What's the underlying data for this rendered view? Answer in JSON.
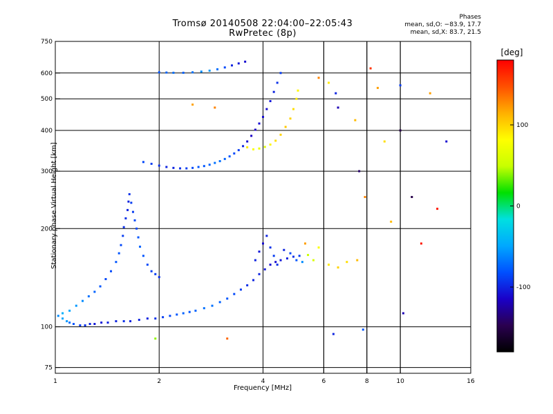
{
  "header": {
    "title": "Tromsø 20140508 22:04:00–22:05:43",
    "subtitle": "RwPretec (8p)",
    "stats_title": "Phases",
    "stats_o": "mean, sd,O: −83.9, 17.7",
    "stats_x": "mean, sd,X:  83.7, 21.5"
  },
  "colorbar": {
    "title": "[deg]",
    "ticks": [
      {
        "value": 100,
        "label": "100"
      },
      {
        "value": 0,
        "label": "0"
      },
      {
        "value": -100,
        "label": "-100"
      }
    ],
    "range": [
      -180,
      180
    ],
    "colors": [
      "#000000",
      "#2a0050",
      "#1a00c8",
      "#0050ff",
      "#00a8ff",
      "#00e0e0",
      "#00e000",
      "#c8ff00",
      "#ffff00",
      "#ffb000",
      "#ff5000",
      "#ff0000"
    ]
  },
  "chart_data": {
    "type": "scatter",
    "title": "Tromsø 20140508 22:04:00–22:05:43",
    "subtitle": "RwPretec (8p)",
    "xlabel": "Frequency [MHz]",
    "ylabel": "Stationary phase Virtual Height [km]",
    "xscale": "log",
    "yscale": "log",
    "xlim": [
      1,
      16
    ],
    "ylim": [
      72,
      750
    ],
    "grid": true,
    "xticks": [
      {
        "value": 1,
        "label": "1"
      },
      {
        "value": 2,
        "label": "2"
      },
      {
        "value": 4,
        "label": "4"
      },
      {
        "value": 6,
        "label": "6"
      },
      {
        "value": 8,
        "label": "8"
      },
      {
        "value": 10,
        "label": "10"
      },
      {
        "value": 16,
        "label": "16"
      }
    ],
    "xgrid_extra": [
      6,
      8,
      10
    ],
    "yticks": [
      {
        "value": 75,
        "label": "75"
      },
      {
        "value": 100,
        "label": "100"
      },
      {
        "value": 200,
        "label": "200"
      },
      {
        "value": 300,
        "label": "300"
      },
      {
        "value": 400,
        "label": "400"
      },
      {
        "value": 500,
        "label": "500"
      },
      {
        "value": 600,
        "label": "600"
      },
      {
        "value": 750,
        "label": "750"
      }
    ],
    "color_scale": "phase [deg]",
    "series": [
      {
        "points": [
          [
            1.02,
            108,
            -60
          ],
          [
            1.05,
            106,
            -50
          ],
          [
            1.08,
            104,
            -55
          ],
          [
            1.1,
            103,
            -70
          ],
          [
            1.13,
            102,
            -80
          ],
          [
            1.18,
            101,
            -90
          ],
          [
            1.22,
            101,
            -95
          ],
          [
            1.26,
            102,
            -100
          ],
          [
            1.3,
            102,
            -105
          ],
          [
            1.36,
            103,
            -105
          ],
          [
            1.42,
            103,
            -100
          ],
          [
            1.5,
            104,
            -100
          ],
          [
            1.58,
            104,
            -95
          ],
          [
            1.65,
            104,
            -100
          ],
          [
            1.75,
            105,
            -100
          ],
          [
            1.85,
            106,
            -100
          ],
          [
            1.95,
            106,
            -95
          ],
          [
            2.05,
            107,
            -90
          ],
          [
            2.15,
            108,
            -85
          ],
          [
            2.25,
            109,
            -80
          ],
          [
            2.35,
            110,
            -75
          ],
          [
            2.45,
            111,
            -80
          ],
          [
            2.55,
            112,
            -75
          ],
          [
            2.7,
            114,
            -70
          ],
          [
            2.85,
            116,
            -70
          ],
          [
            3.0,
            119,
            -75
          ],
          [
            3.15,
            122,
            -80
          ],
          [
            3.3,
            126,
            -85
          ],
          [
            3.45,
            130,
            -90
          ],
          [
            3.6,
            134,
            -95
          ],
          [
            3.75,
            139,
            -100
          ],
          [
            3.9,
            145,
            -100
          ],
          [
            4.05,
            150,
            -105
          ],
          [
            4.2,
            155,
            -110
          ],
          [
            4.35,
            158,
            -110
          ],
          [
            4.5,
            160,
            -105
          ],
          [
            4.7,
            162,
            -100
          ],
          [
            4.9,
            164,
            -95
          ],
          [
            5.1,
            165,
            -90
          ]
        ]
      },
      {
        "points": [
          [
            1.05,
            110,
            -45
          ],
          [
            1.1,
            112,
            -50
          ],
          [
            1.15,
            116,
            -55
          ],
          [
            1.2,
            120,
            -60
          ],
          [
            1.25,
            124,
            -70
          ],
          [
            1.3,
            128,
            -75
          ],
          [
            1.35,
            133,
            -80
          ],
          [
            1.4,
            140,
            -85
          ],
          [
            1.45,
            148,
            -85
          ],
          [
            1.5,
            158,
            -80
          ],
          [
            1.53,
            168,
            -80
          ],
          [
            1.55,
            178,
            -85
          ],
          [
            1.57,
            190,
            -90
          ],
          [
            1.58,
            202,
            -95
          ],
          [
            1.6,
            215,
            -95
          ],
          [
            1.62,
            228,
            -100
          ],
          [
            1.63,
            242,
            -100
          ],
          [
            1.64,
            255,
            -95
          ],
          [
            1.66,
            240,
            -90
          ],
          [
            1.68,
            225,
            -90
          ],
          [
            1.7,
            212,
            -85
          ],
          [
            1.72,
            200,
            -85
          ],
          [
            1.74,
            188,
            -80
          ],
          [
            1.76,
            176,
            -75
          ],
          [
            1.8,
            165,
            -80
          ],
          [
            1.85,
            155,
            -85
          ],
          [
            1.9,
            148,
            -90
          ],
          [
            1.95,
            145,
            -90
          ],
          [
            2.0,
            142,
            -95
          ]
        ]
      },
      {
        "points": [
          [
            1.8,
            320,
            -85
          ],
          [
            1.9,
            316,
            -90
          ],
          [
            2.0,
            312,
            -95
          ],
          [
            2.1,
            309,
            -100
          ],
          [
            2.2,
            307,
            -100
          ],
          [
            2.3,
            306,
            -95
          ],
          [
            2.4,
            306,
            -90
          ],
          [
            2.5,
            307,
            -85
          ],
          [
            2.6,
            309,
            -80
          ],
          [
            2.7,
            311,
            -80
          ],
          [
            2.8,
            314,
            -75
          ],
          [
            2.9,
            318,
            -70
          ],
          [
            3.0,
            322,
            -70
          ],
          [
            3.1,
            327,
            -75
          ],
          [
            3.2,
            333,
            -80
          ],
          [
            3.3,
            340,
            -85
          ],
          [
            3.4,
            348,
            -90
          ],
          [
            3.5,
            358,
            -100
          ],
          [
            3.6,
            370,
            -110
          ],
          [
            3.7,
            385,
            -115
          ],
          [
            3.8,
            402,
            -115
          ],
          [
            3.9,
            420,
            -110
          ],
          [
            4.0,
            440,
            -110
          ],
          [
            4.1,
            465,
            -110
          ],
          [
            4.2,
            492,
            -105
          ],
          [
            4.3,
            525,
            -100
          ],
          [
            4.4,
            560,
            -95
          ],
          [
            4.5,
            600,
            -90
          ]
        ]
      },
      {
        "points": [
          [
            3.6,
            355,
            90
          ],
          [
            3.75,
            350,
            80
          ],
          [
            3.9,
            352,
            70
          ],
          [
            4.05,
            356,
            60
          ],
          [
            4.2,
            362,
            85
          ],
          [
            4.35,
            372,
            95
          ],
          [
            4.5,
            388,
            100
          ],
          [
            4.65,
            410,
            105
          ],
          [
            4.8,
            435,
            100
          ],
          [
            4.9,
            465,
            95
          ],
          [
            5.0,
            500,
            90
          ],
          [
            5.05,
            530,
            85
          ]
        ]
      },
      {
        "points": [
          [
            2.0,
            603,
            -80
          ],
          [
            2.1,
            602,
            -75
          ],
          [
            2.2,
            601,
            -70
          ],
          [
            2.35,
            601,
            -75
          ],
          [
            2.5,
            603,
            -70
          ],
          [
            2.65,
            606,
            -60
          ],
          [
            2.8,
            610,
            -55
          ],
          [
            2.95,
            616,
            -70
          ],
          [
            3.1,
            624,
            -85
          ],
          [
            3.25,
            633,
            -100
          ],
          [
            3.4,
            642,
            -105
          ],
          [
            3.55,
            650,
            -110
          ]
        ]
      },
      {
        "points": [
          [
            3.8,
            160,
            -100
          ],
          [
            3.9,
            170,
            -105
          ],
          [
            4.0,
            180,
            -110
          ],
          [
            4.1,
            190,
            -100
          ],
          [
            4.2,
            175,
            -95
          ],
          [
            4.3,
            165,
            -90
          ],
          [
            4.4,
            155,
            -95
          ],
          [
            4.6,
            172,
            -100
          ],
          [
            4.8,
            168,
            -85
          ],
          [
            5.0,
            160,
            -80
          ],
          [
            5.2,
            158,
            -60
          ],
          [
            5.4,
            166,
            50
          ],
          [
            5.6,
            160,
            60
          ],
          [
            6.2,
            155,
            90
          ],
          [
            6.6,
            152,
            100
          ],
          [
            7.0,
            158,
            95
          ],
          [
            7.5,
            160,
            110
          ],
          [
            5.3,
            180,
            120
          ],
          [
            5.8,
            175,
            80
          ]
        ]
      },
      {
        "points": [
          [
            5.8,
            580,
            130
          ],
          [
            6.2,
            560,
            90
          ],
          [
            6.5,
            520,
            -100
          ],
          [
            6.6,
            470,
            -120
          ],
          [
            7.4,
            430,
            110
          ],
          [
            7.6,
            300,
            -140
          ],
          [
            7.9,
            250,
            130
          ],
          [
            8.2,
            620,
            160
          ],
          [
            8.6,
            540,
            120
          ],
          [
            9.0,
            370,
            95
          ],
          [
            9.4,
            210,
            110
          ],
          [
            10.0,
            550,
            -90
          ],
          [
            10.0,
            400,
            -150
          ],
          [
            10.2,
            110,
            -120
          ],
          [
            10.8,
            250,
            -150
          ],
          [
            11.5,
            180,
            170
          ],
          [
            12.2,
            520,
            120
          ],
          [
            12.8,
            230,
            170
          ],
          [
            13.6,
            370,
            -110
          ],
          [
            6.4,
            95,
            -100
          ],
          [
            7.8,
            98,
            -80
          ],
          [
            3.15,
            92,
            140
          ],
          [
            2.9,
            470,
            130
          ],
          [
            1.95,
            92,
            40
          ],
          [
            2.5,
            480,
            120
          ]
        ]
      }
    ]
  }
}
